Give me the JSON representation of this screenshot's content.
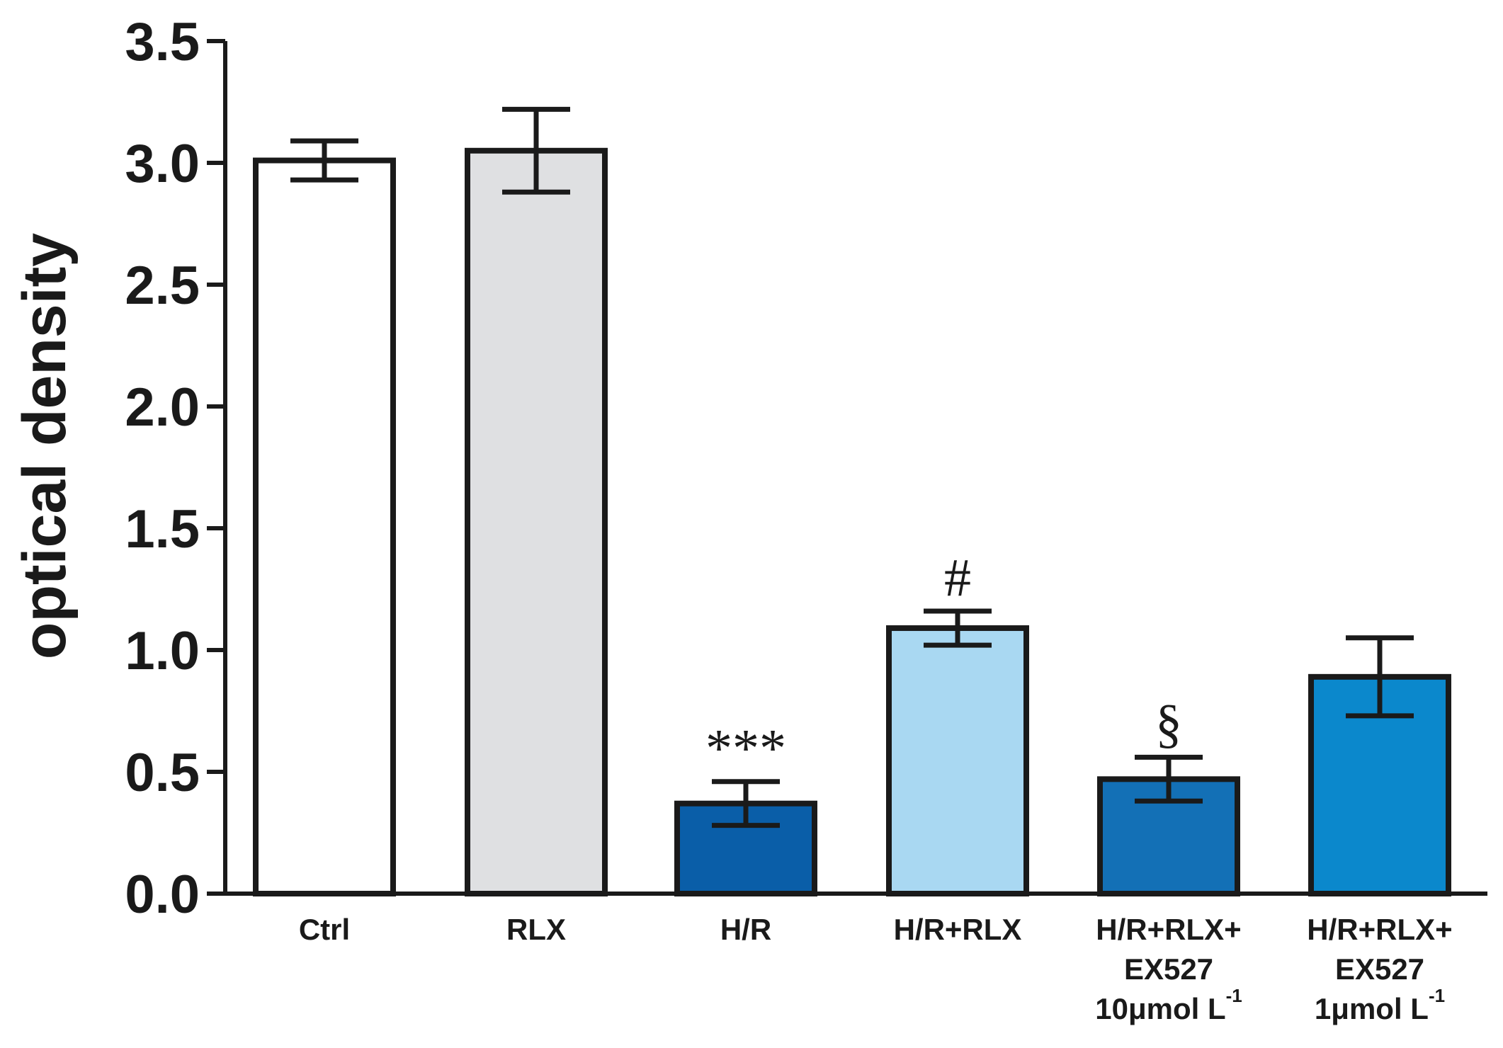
{
  "chart_data": {
    "type": "bar",
    "title": "",
    "xlabel": "",
    "ylabel": "optical density",
    "ylim": [
      0,
      3.5
    ],
    "yticks": [
      0.0,
      0.5,
      1.0,
      1.5,
      2.0,
      2.5,
      3.0,
      3.5
    ],
    "ytick_labels": [
      "0.0",
      "0.5",
      "1.0",
      "1.5",
      "2.0",
      "2.5",
      "3.0",
      "3.5"
    ],
    "grid": false,
    "legend": "none",
    "categories": [
      [
        "Ctrl"
      ],
      [
        "RLX"
      ],
      [
        "H/R"
      ],
      [
        "H/R+RLX"
      ],
      [
        "H/R+RLX+",
        "EX527",
        "10μmol L",
        "-1"
      ],
      [
        "H/R+RLX+",
        "EX527",
        "1μmol L",
        "-1"
      ]
    ],
    "values": [
      3.01,
      3.05,
      0.37,
      1.09,
      0.47,
      0.89
    ],
    "error": [
      0.08,
      0.17,
      0.09,
      0.07,
      0.09,
      0.16
    ],
    "annotations": [
      "",
      "",
      "***",
      "#",
      "§",
      ""
    ],
    "colors": [
      "#ffffff",
      "#dfe0e2",
      "#0a5ea8",
      "#a9d8f2",
      "#1370b6",
      "#0b88cc"
    ],
    "edge_color": "#1a1a1a"
  }
}
